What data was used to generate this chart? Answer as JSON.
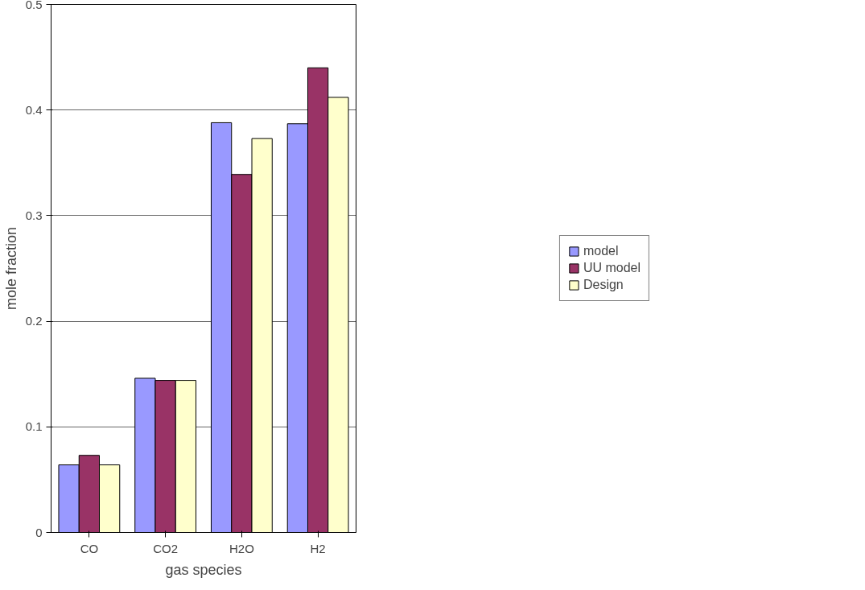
{
  "chart_data": {
    "type": "bar",
    "xlabel": "gas species",
    "ylabel": "mole fraction",
    "categories": [
      "CO",
      "CO2",
      "H2O",
      "H2"
    ],
    "series": [
      {
        "name": "model",
        "color": "#9999ff",
        "values": [
          0.064,
          0.146,
          0.388,
          0.387
        ]
      },
      {
        "name": "UU model",
        "color": "#993366",
        "values": [
          0.073,
          0.144,
          0.339,
          0.44
        ]
      },
      {
        "name": "Design",
        "color": "#ffffcc",
        "values": [
          0.064,
          0.144,
          0.373,
          0.412
        ]
      }
    ],
    "ylim": [
      0,
      0.5
    ],
    "yticks": [
      {
        "value": 0,
        "label": "0"
      },
      0.1,
      0.2,
      0.3,
      0.4,
      0.5
    ],
    "grid": "y",
    "legend": "right"
  }
}
